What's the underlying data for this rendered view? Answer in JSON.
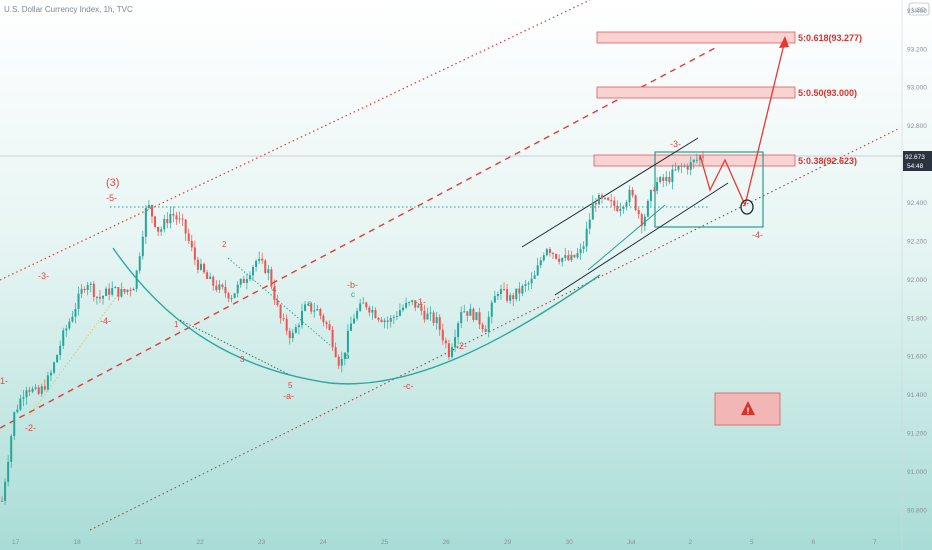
{
  "chart_data": {
    "type": "candlestick",
    "title": "U.S. Dollar Currency Index, 1h, TVC",
    "currency_badge": "USD",
    "y_ticks": [
      "93.400",
      "93.200",
      "93.000",
      "92.800",
      "92.600",
      "92.400",
      "92.200",
      "92.000",
      "91.800",
      "91.600",
      "91.400",
      "91.200",
      "91.000",
      "90.800"
    ],
    "ylim": [
      90.75,
      93.42
    ],
    "x_ticks": [
      "17",
      "18",
      "21",
      "22",
      "23",
      "24",
      "25",
      "26",
      "29",
      "30",
      "Jul",
      "2",
      "5",
      "6",
      "7"
    ],
    "current_price": "92.673",
    "countdown": "54:48",
    "price_path": [
      [
        0,
        90.85
      ],
      [
        1,
        91.3
      ],
      [
        2,
        91.45
      ],
      [
        3,
        91.4
      ],
      [
        4,
        91.5
      ],
      [
        5,
        91.7
      ],
      [
        6,
        91.85
      ],
      [
        7,
        92.0
      ],
      [
        8,
        91.9
      ],
      [
        9,
        91.95
      ],
      [
        10,
        91.93
      ],
      [
        11,
        91.98
      ],
      [
        12,
        92.4
      ],
      [
        13,
        92.25
      ],
      [
        14,
        92.35
      ],
      [
        15,
        92.28
      ],
      [
        16,
        92.1
      ],
      [
        17,
        92.0
      ],
      [
        18,
        91.95
      ],
      [
        19,
        91.92
      ],
      [
        20,
        92.0
      ],
      [
        21,
        92.1
      ],
      [
        22,
        92.05
      ],
      [
        23,
        91.8
      ],
      [
        24,
        91.7
      ],
      [
        25,
        91.85
      ],
      [
        26,
        91.85
      ],
      [
        27,
        91.75
      ],
      [
        28,
        91.55
      ],
      [
        29,
        91.8
      ],
      [
        30,
        91.88
      ],
      [
        31,
        91.82
      ],
      [
        32,
        91.78
      ],
      [
        33,
        91.85
      ],
      [
        34,
        91.88
      ],
      [
        35,
        91.82
      ],
      [
        36,
        91.78
      ],
      [
        37,
        91.62
      ],
      [
        38,
        91.85
      ],
      [
        39,
        91.82
      ],
      [
        40,
        91.75
      ],
      [
        41,
        91.95
      ],
      [
        42,
        91.9
      ],
      [
        43,
        91.95
      ],
      [
        44,
        92.0
      ],
      [
        45,
        92.18
      ],
      [
        46,
        92.12
      ],
      [
        47,
        92.1
      ],
      [
        48,
        92.15
      ],
      [
        49,
        92.42
      ],
      [
        50,
        92.4
      ],
      [
        51,
        92.38
      ],
      [
        52,
        92.45
      ],
      [
        53,
        92.3
      ],
      [
        54,
        92.5
      ],
      [
        55,
        92.52
      ],
      [
        56,
        92.58
      ],
      [
        57,
        92.6
      ],
      [
        58,
        92.65
      ]
    ],
    "fib_levels": [
      {
        "label": "5:0.618(93.277)",
        "value": 93.277
      },
      {
        "label": "5:0.50(93.000)",
        "value": 93.0
      },
      {
        "label": "5:0.38(92.623)",
        "value": 92.623
      }
    ],
    "wave_labels": {
      "degree3": "(3)",
      "w5": "-5-",
      "w3": "-3-",
      "w4": "-4-",
      "w2": "-2-",
      "w1": "-1-",
      "wa": "-a-",
      "wb": "-b-",
      "wc": "-c-",
      "w2b": "-2-",
      "w3b": "-3-",
      "w4b": "-4-",
      "n1": "1",
      "n2": "2",
      "n3": "3",
      "n4": "4",
      "n5": "5",
      "ta": "a",
      "tb": "b",
      "tc": "c",
      "w1edge": "1-"
    },
    "colors": {
      "background_top": "#ffffff",
      "background_bottom": "#a9dcd6",
      "bull": "#26a69a",
      "bear": "#ef5350",
      "red_channel": "#e53935",
      "teal_curve": "#2ea89b",
      "fib_fill": "#f9d2d2",
      "fib_stroke": "#e05a5a",
      "warning": "#f2b6b6"
    }
  }
}
